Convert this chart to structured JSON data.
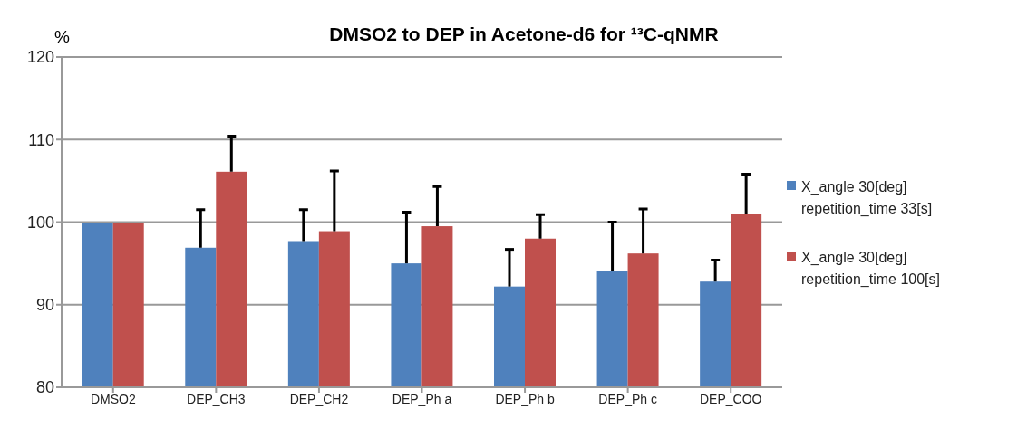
{
  "chart_data": {
    "type": "bar",
    "title": "DMSO2 to DEP in Acetone-d6 for ¹³C-qNMR",
    "ylabel": "%",
    "categories": [
      "DMSO2",
      "DEP_CH3",
      "DEP_CH2",
      "DEP_Ph a",
      "DEP_Ph b",
      "DEP_Ph c",
      "DEP_COO"
    ],
    "series": [
      {
        "name": "X_angle 30[deg] repetition_time 33[s]",
        "color": "#4f81bd",
        "values": [
          99.9,
          96.9,
          97.7,
          95.0,
          92.2,
          94.1,
          92.8
        ],
        "errors": [
          null,
          [
            96.9,
            101.5
          ],
          [
            97.7,
            101.5
          ],
          [
            95.0,
            101.2
          ],
          [
            92.2,
            96.7
          ],
          [
            94.1,
            100.0
          ],
          [
            92.8,
            95.4
          ]
        ]
      },
      {
        "name": "X_angle 30[deg] repetition_time 100[s]",
        "color": "#c0504d",
        "values": [
          99.9,
          106.1,
          98.9,
          99.5,
          98.0,
          96.2,
          101.0
        ],
        "errors": [
          null,
          [
            106.1,
            110.4
          ],
          [
            98.9,
            106.2
          ],
          [
            99.5,
            104.3
          ],
          [
            98.0,
            100.9
          ],
          [
            96.2,
            101.6
          ],
          [
            101.0,
            105.8
          ]
        ]
      }
    ],
    "ylim": [
      80,
      120
    ],
    "yticks": [
      80,
      90,
      100,
      110,
      120
    ],
    "grid": "y",
    "legend": "right"
  }
}
